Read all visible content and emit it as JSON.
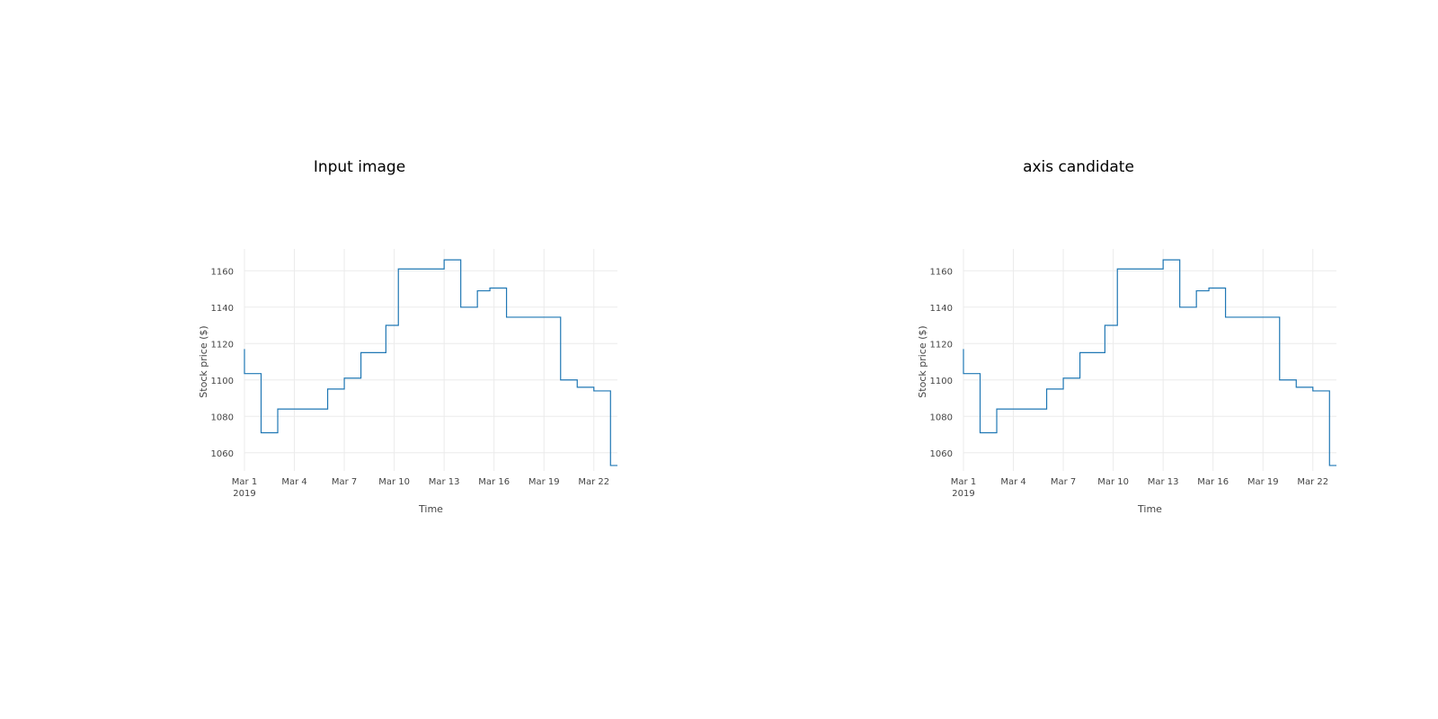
{
  "colors": {
    "series": "#1f77b4",
    "grid": "#ebebeb",
    "text": "#444444",
    "background": "#ffffff"
  },
  "chart_data": [
    {
      "panel_title": "Input image",
      "type": "line",
      "line_shape": "step",
      "title": "",
      "xlabel": "Time",
      "ylabel": "Stock price ($)",
      "x_tick_labels": [
        "Mar 1",
        "Mar 4",
        "Mar 7",
        "Mar 10",
        "Mar 13",
        "Mar 16",
        "Mar 19",
        "Mar 22"
      ],
      "x_tick_dates": [
        "2019-03-01",
        "2019-03-04",
        "2019-03-07",
        "2019-03-10",
        "2019-03-13",
        "2019-03-16",
        "2019-03-19",
        "2019-03-22"
      ],
      "x_tick_sublabel": "2019",
      "y_ticks": [
        1060,
        1080,
        1100,
        1120,
        1140,
        1160
      ],
      "ylim": [
        1050,
        1172
      ],
      "xlim": [
        "2019-03-01",
        "2019-03-23 10:00"
      ],
      "grid": true,
      "legend": "none",
      "series": [
        {
          "points": [
            [
              "2019-03-01 00:00",
              1117
            ],
            [
              "2019-03-01 00:00",
              1103.5
            ],
            [
              "2019-03-02 00:00",
              1103.5
            ],
            [
              "2019-03-02 00:00",
              1071
            ],
            [
              "2019-03-03 00:00",
              1071
            ],
            [
              "2019-03-03 00:00",
              1084
            ],
            [
              "2019-03-06 00:00",
              1084
            ],
            [
              "2019-03-06 00:00",
              1095
            ],
            [
              "2019-03-07 00:00",
              1095
            ],
            [
              "2019-03-07 00:00",
              1101
            ],
            [
              "2019-03-08 00:00",
              1101
            ],
            [
              "2019-03-08 00:00",
              1115
            ],
            [
              "2019-03-09 12:00",
              1115
            ],
            [
              "2019-03-09 12:00",
              1130
            ],
            [
              "2019-03-10 06:00",
              1130
            ],
            [
              "2019-03-10 06:00",
              1161
            ],
            [
              "2019-03-13 00:00",
              1161
            ],
            [
              "2019-03-13 00:00",
              1166
            ],
            [
              "2019-03-14 00:00",
              1166
            ],
            [
              "2019-03-14 00:00",
              1140
            ],
            [
              "2019-03-15 00:00",
              1140
            ],
            [
              "2019-03-15 00:00",
              1149
            ],
            [
              "2019-03-15 18:00",
              1149
            ],
            [
              "2019-03-15 18:00",
              1150.5
            ],
            [
              "2019-03-16 18:00",
              1150.5
            ],
            [
              "2019-03-16 18:00",
              1134.5
            ],
            [
              "2019-03-20 00:00",
              1134.5
            ],
            [
              "2019-03-20 00:00",
              1100
            ],
            [
              "2019-03-21 00:00",
              1100
            ],
            [
              "2019-03-21 00:00",
              1096
            ],
            [
              "2019-03-22 00:00",
              1096
            ],
            [
              "2019-03-22 00:00",
              1094
            ],
            [
              "2019-03-23 00:00",
              1094
            ],
            [
              "2019-03-23 00:00",
              1053
            ],
            [
              "2019-03-23 10:00",
              1053
            ]
          ]
        }
      ]
    },
    {
      "panel_title": "axis candidate",
      "type": "line",
      "line_shape": "step",
      "title": "",
      "xlabel": "Time",
      "ylabel": "Stock price ($)",
      "x_tick_labels": [
        "Mar 1",
        "Mar 4",
        "Mar 7",
        "Mar 10",
        "Mar 13",
        "Mar 16",
        "Mar 19",
        "Mar 22"
      ],
      "x_tick_dates": [
        "2019-03-01",
        "2019-03-04",
        "2019-03-07",
        "2019-03-10",
        "2019-03-13",
        "2019-03-16",
        "2019-03-19",
        "2019-03-22"
      ],
      "x_tick_sublabel": "2019",
      "y_ticks": [
        1060,
        1080,
        1100,
        1120,
        1140,
        1160
      ],
      "ylim": [
        1050,
        1172
      ],
      "xlim": [
        "2019-03-01",
        "2019-03-23 10:00"
      ],
      "grid": true,
      "legend": "none",
      "series": [
        {
          "points": [
            [
              "2019-03-01 00:00",
              1117
            ],
            [
              "2019-03-01 00:00",
              1103.5
            ],
            [
              "2019-03-02 00:00",
              1103.5
            ],
            [
              "2019-03-02 00:00",
              1071
            ],
            [
              "2019-03-03 00:00",
              1071
            ],
            [
              "2019-03-03 00:00",
              1084
            ],
            [
              "2019-03-06 00:00",
              1084
            ],
            [
              "2019-03-06 00:00",
              1095
            ],
            [
              "2019-03-07 00:00",
              1095
            ],
            [
              "2019-03-07 00:00",
              1101
            ],
            [
              "2019-03-08 00:00",
              1101
            ],
            [
              "2019-03-08 00:00",
              1115
            ],
            [
              "2019-03-09 12:00",
              1115
            ],
            [
              "2019-03-09 12:00",
              1130
            ],
            [
              "2019-03-10 06:00",
              1130
            ],
            [
              "2019-03-10 06:00",
              1161
            ],
            [
              "2019-03-13 00:00",
              1161
            ],
            [
              "2019-03-13 00:00",
              1166
            ],
            [
              "2019-03-14 00:00",
              1166
            ],
            [
              "2019-03-14 00:00",
              1140
            ],
            [
              "2019-03-15 00:00",
              1140
            ],
            [
              "2019-03-15 00:00",
              1149
            ],
            [
              "2019-03-15 18:00",
              1149
            ],
            [
              "2019-03-15 18:00",
              1150.5
            ],
            [
              "2019-03-16 18:00",
              1150.5
            ],
            [
              "2019-03-16 18:00",
              1134.5
            ],
            [
              "2019-03-20 00:00",
              1134.5
            ],
            [
              "2019-03-20 00:00",
              1100
            ],
            [
              "2019-03-21 00:00",
              1100
            ],
            [
              "2019-03-21 00:00",
              1096
            ],
            [
              "2019-03-22 00:00",
              1096
            ],
            [
              "2019-03-22 00:00",
              1094
            ],
            [
              "2019-03-23 00:00",
              1094
            ],
            [
              "2019-03-23 00:00",
              1053
            ],
            [
              "2019-03-23 10:00",
              1053
            ]
          ]
        }
      ]
    }
  ]
}
